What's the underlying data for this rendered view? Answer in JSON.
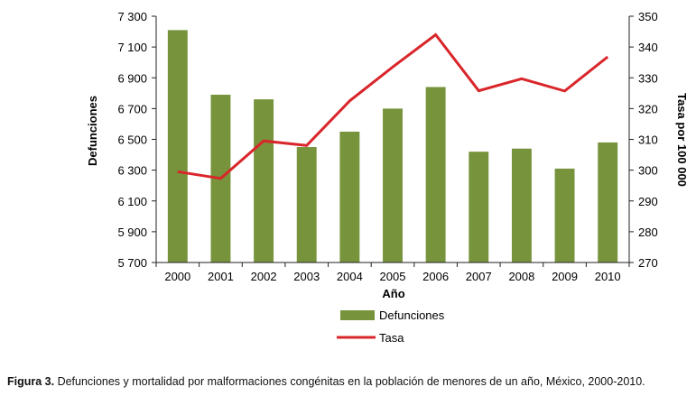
{
  "chart_data": {
    "type": "bar",
    "categories": [
      "2000",
      "2001",
      "2002",
      "2003",
      "2004",
      "2005",
      "2006",
      "2007",
      "2008",
      "2009",
      "2010"
    ],
    "series": [
      {
        "name": "Defunciones",
        "type": "bar",
        "axis": "left",
        "color": "#77933c",
        "values": [
          7210,
          6790,
          6760,
          6450,
          6550,
          6700,
          6840,
          6420,
          6440,
          6310,
          6480
        ]
      },
      {
        "name": "Tasa",
        "type": "line",
        "axis": "right",
        "color": "#d9262b",
        "values": [
          299.5,
          297.3,
          309.5,
          308.0,
          322.5,
          333.5,
          344.0,
          325.8,
          329.7,
          325.7,
          336.8
        ]
      }
    ],
    "xlabel": "Año",
    "ylabel_left": "Defunciones",
    "ylabel_right": "Tasa por 100 000",
    "ylim_left": [
      5700,
      7300
    ],
    "ylim_right": [
      270,
      350
    ],
    "yticks_left": [
      "5 700",
      "5 900",
      "6 100",
      "6 300",
      "6 500",
      "6 700",
      "6 900",
      "7 100",
      "7 300"
    ],
    "yticks_right": [
      "270",
      "280",
      "290",
      "300",
      "310",
      "320",
      "330",
      "340",
      "350"
    ],
    "legend_position": "bottom",
    "grid": false
  },
  "caption": {
    "label": "Figura 3.",
    "text": " Defunciones y mortalidad por malformaciones congénitas en la población de menores de un año, México, 2000-2010."
  }
}
